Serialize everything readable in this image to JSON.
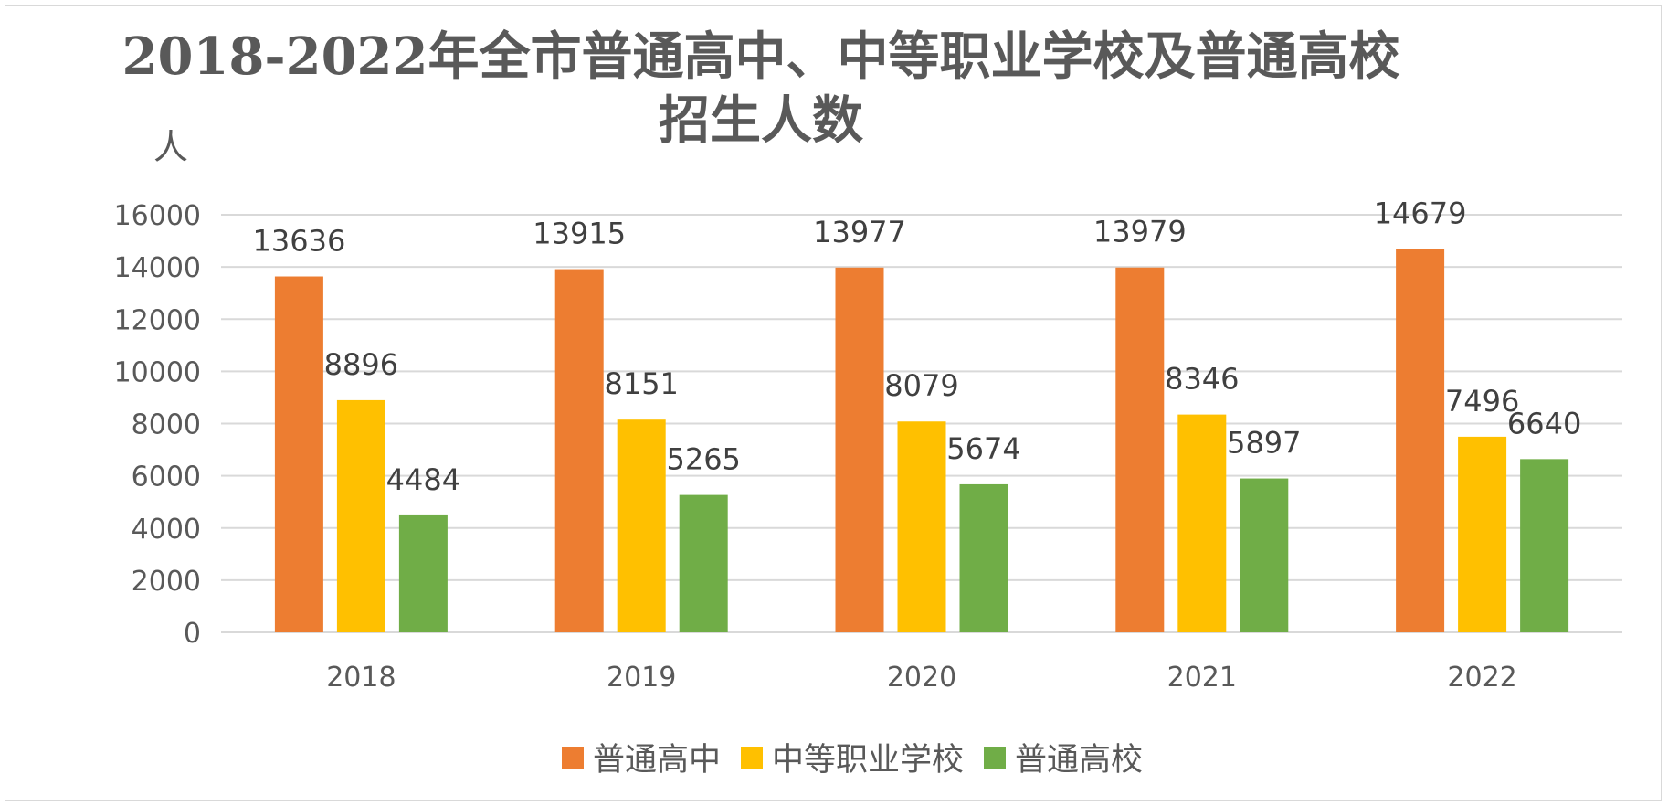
{
  "chart_data": {
    "type": "bar",
    "title_line1": "2018-2022年全市普通高中、中等职业学校及普通高校",
    "title_line2": "招生人数",
    "ylabel": "人",
    "xlabel": "",
    "categories": [
      "2018",
      "2019",
      "2020",
      "2021",
      "2022"
    ],
    "ylim": [
      0,
      16000
    ],
    "yticks": [
      "0",
      "2000",
      "4000",
      "6000",
      "8000",
      "10000",
      "12000",
      "14000",
      "16000"
    ],
    "grid": true,
    "legend_position": "bottom",
    "series": [
      {
        "name": "普通高中",
        "color": "#ED7D31",
        "values": [
          13636,
          13915,
          13977,
          13979,
          14679
        ]
      },
      {
        "name": "中等职业学校",
        "color": "#FFC000",
        "values": [
          8896,
          8151,
          8079,
          8346,
          7496
        ]
      },
      {
        "name": "普通高校",
        "color": "#70AD47",
        "values": [
          4484,
          5265,
          5674,
          5897,
          6640
        ]
      }
    ]
  }
}
